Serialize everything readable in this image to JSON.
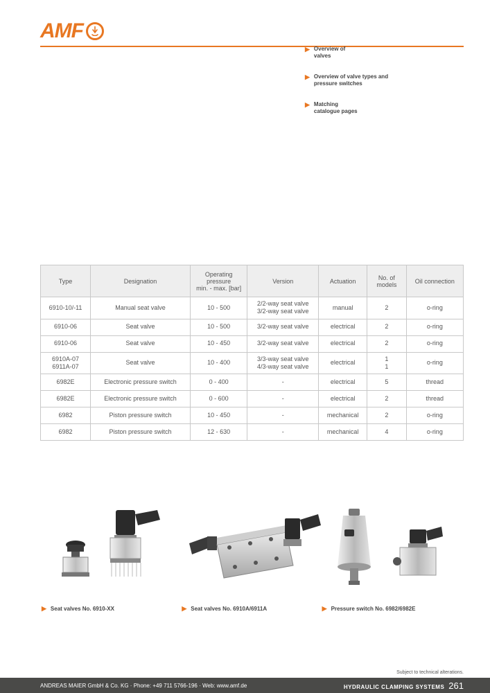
{
  "brand": {
    "name": "AMF",
    "accent_color": "#e87722"
  },
  "nav_bullets": [
    {
      "line1": "Overview of",
      "line2": "valves"
    },
    {
      "line1": "Overview of valve types and",
      "line2": "pressure switches"
    },
    {
      "line1": "Matching",
      "line2": "catalogue pages"
    }
  ],
  "table": {
    "columns": [
      "Type",
      "Designation",
      "Operating pressure\nmin. - max. [bar]",
      "Version",
      "Actuation",
      "No. of models",
      "Oil connection"
    ],
    "rows": [
      [
        "6910-10/-11",
        "Manual seat valve",
        "10 - 500",
        "2/2-way seat valve\n3/2-way seat valve",
        "manual",
        "2",
        "o-ring"
      ],
      [
        "6910-06",
        "Seat valve",
        "10 - 500",
        "3/2-way seat valve",
        "electrical",
        "2",
        "o-ring"
      ],
      [
        "6910-06",
        "Seat valve",
        "10 - 450",
        "3/2-way seat valve",
        "electrical",
        "2",
        "o-ring"
      ],
      [
        "6910A-07\n6911A-07",
        "Seat valve",
        "10 - 400",
        "3/3-way seat valve\n4/3-way seat valve",
        "electrical",
        "1\n1",
        "o-ring"
      ],
      [
        "6982E",
        "Electronic pressure switch",
        "0 - 400",
        "-",
        "electrical",
        "5",
        "thread"
      ],
      [
        "6982E",
        "Electronic pressure switch",
        "0 - 600",
        "-",
        "electrical",
        "2",
        "thread"
      ],
      [
        "6982",
        "Piston pressure switch",
        "10 - 450",
        "-",
        "mechanical",
        "2",
        "o-ring"
      ],
      [
        "6982",
        "Piston pressure switch",
        "12 - 630",
        "-",
        "mechanical",
        "4",
        "o-ring"
      ]
    ]
  },
  "products": [
    {
      "label": "Seat valves No. 6910-XX"
    },
    {
      "label": "Seat valves No. 6910A/6911A"
    },
    {
      "label": "Pressure switch No. 6982/6982E"
    }
  ],
  "footer": {
    "alter": "Subject to technical alterations.",
    "left": "ANDREAS MAIER GmbH & Co. KG · Phone: +49 711 5766-196 · Web: www.amf.de",
    "right_section": "HYDRAULIC CLAMPING SYSTEMS",
    "right_page": "261"
  },
  "colors": {
    "accent": "#e87722",
    "rule": "#e87722",
    "table_head_bg": "#eeeeee",
    "table_border": "#c8c8c8",
    "footer_bg": "#4a4a48",
    "text": "#3a3a3a"
  }
}
